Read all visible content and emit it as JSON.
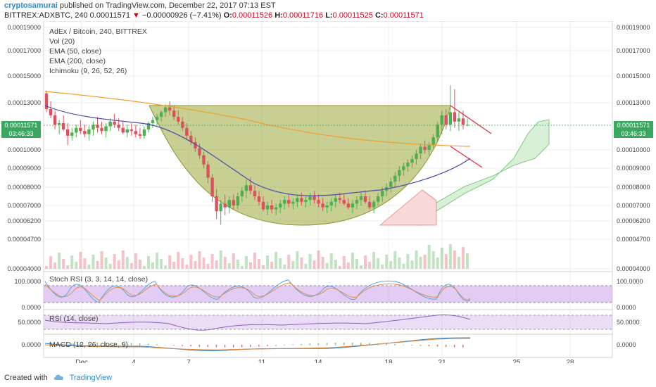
{
  "header": {
    "user": "cryptosamurai",
    "published": "published on TradingView.com, December 22, 2017 07:13 EST",
    "symbol": "BITTREX:ADXBTC, 240",
    "last": "0.00011571",
    "change_arrow": "▼",
    "change": "−0.00000926 (−7.41%)",
    "open_label": "O:",
    "open": "0.00011526",
    "high_label": "H:",
    "high": "0.00011716",
    "low_label": "L:",
    "low": "0.00011525",
    "close_label": "C:",
    "close": "0.00011571"
  },
  "legend": {
    "title": "AdEx / Bitcoin, 240, BITTREX",
    "vol": "Vol (20)",
    "ema50": "EMA (50, close)",
    "ema200": "EMA (200, close)",
    "ichimoku": "Ichimoku (9, 26, 52, 26)"
  },
  "price_badge": {
    "price": "0.00011571",
    "countdown": "03:46:33"
  },
  "footer": {
    "created": "Created with",
    "brand": "TradingView"
  },
  "colors": {
    "up": "#4caf50",
    "down": "#e04f5f",
    "cup": "#9aa83a",
    "ema50": "#5a5aa8",
    "ema200": "#f0a030",
    "rsi_band": "#c18ee6"
  },
  "chart_data": {
    "type": "candlestick",
    "price_axis": {
      "ticks": [
        0.00019,
        0.00017,
        0.00015,
        0.00013,
        0.0001,
        9e-05,
        8e-05,
        7e-05,
        6.2e-05,
        4.7e-05,
        4e-05
      ],
      "labels": [
        "0.00019000",
        "0.00017000",
        "0.00015000",
        "0.00013000",
        "0.00010000",
        "0.00009000",
        "0.00008000",
        "0.00007000",
        "0.00006200",
        "0.00004700",
        "0.00004000"
      ]
    },
    "x_ticks": [
      "Dec",
      "4",
      "7",
      "11",
      "14",
      "18",
      "21",
      "25",
      "28"
    ],
    "candles": [
      [
        0.000137,
        0.000139,
        0.000124,
        0.000126
      ],
      [
        0.000126,
        0.000131,
        0.00012,
        0.000122
      ],
      [
        0.000122,
        0.000125,
        0.000113,
        0.000116
      ],
      [
        0.000116,
        0.000119,
        0.00011,
        0.000117
      ],
      [
        0.000117,
        0.000122,
        0.000112,
        0.000113
      ],
      [
        0.000113,
        0.000117,
        0.000103,
        0.000109
      ],
      [
        0.000109,
        0.000114,
        0.000106,
        0.000111
      ],
      [
        0.000111,
        0.000116,
        0.000108,
        0.000114
      ],
      [
        0.000114,
        0.000119,
        0.00011,
        0.000112
      ],
      [
        0.000112,
        0.000116,
        0.000108,
        0.00011
      ],
      [
        0.00011,
        0.000115,
        0.000106,
        0.000113
      ],
      [
        0.000113,
        0.000118,
        0.000109,
        0.000116
      ],
      [
        0.000116,
        0.000121,
        0.000111,
        0.000114
      ],
      [
        0.000114,
        0.000118,
        0.00011,
        0.000112
      ],
      [
        0.000112,
        0.000117,
        0.000108,
        0.000115
      ],
      [
        0.000115,
        0.00012,
        0.000112,
        0.000118
      ],
      [
        0.000118,
        0.000123,
        0.000114,
        0.000116
      ],
      [
        0.000116,
        0.00012,
        0.000112,
        0.000114
      ],
      [
        0.000114,
        0.000118,
        0.00011,
        0.000111
      ],
      [
        0.000111,
        0.000116,
        0.000108,
        0.000113
      ],
      [
        0.000113,
        0.000117,
        0.000109,
        0.000112
      ],
      [
        0.000112,
        0.000116,
        0.000108,
        0.00011
      ],
      [
        0.00011,
        0.000114,
        0.000107,
        0.000109
      ],
      [
        0.000109,
        0.000115,
        0.000107,
        0.000113
      ],
      [
        0.000113,
        0.000118,
        0.000111,
        0.000117
      ],
      [
        0.000117,
        0.000121,
        0.000114,
        0.000119
      ],
      [
        0.000119,
        0.000123,
        0.000116,
        0.000121
      ],
      [
        0.000121,
        0.000125,
        0.000118,
        0.000124
      ],
      [
        0.000124,
        0.000129,
        0.000121,
        0.000127
      ],
      [
        0.000127,
        0.000131,
        0.000122,
        0.000125
      ],
      [
        0.000125,
        0.000128,
        0.000119,
        0.000121
      ],
      [
        0.000121,
        0.000125,
        0.000116,
        0.000118
      ],
      [
        0.000118,
        0.000121,
        0.000112,
        0.000114
      ],
      [
        0.000114,
        0.000117,
        0.000107,
        0.000109
      ],
      [
        0.000109,
        0.000112,
        0.000103,
        0.000105
      ],
      [
        0.000105,
        0.000108,
        9.9e-05,
        0.000101
      ],
      [
        0.000101,
        0.000104,
        9.5e-05,
        9.7e-05
      ],
      [
        9.7e-05,
        9.9e-05,
        9e-05,
        9.2e-05
      ],
      [
        9.2e-05,
        9.4e-05,
        8.2e-05,
        8.5e-05
      ],
      [
        8.5e-05,
        8.7e-05,
        7.2e-05,
        7.5e-05
      ],
      [
        7.5e-05,
        7.9e-05,
        6.3e-05,
        6.7e-05
      ],
      [
        6.7e-05,
        7.3e-05,
        5.9e-05,
        7.1e-05
      ],
      [
        7.1e-05,
        7.6e-05,
        6.5e-05,
        6.9e-05
      ],
      [
        6.9e-05,
        7.5e-05,
        6.6e-05,
        7.3e-05
      ],
      [
        7.3e-05,
        7.6e-05,
        6.8e-05,
        7e-05
      ],
      [
        7e-05,
        7.7e-05,
        6.8e-05,
        7.5e-05
      ],
      [
        7.5e-05,
        8e-05,
        7.2e-05,
        7.8e-05
      ],
      [
        7.8e-05,
        8.4e-05,
        7.4e-05,
        8.1e-05
      ],
      [
        8.1e-05,
        8.5e-05,
        7.6e-05,
        7.8e-05
      ],
      [
        7.8e-05,
        8.1e-05,
        7.3e-05,
        7.5e-05
      ],
      [
        7.5e-05,
        7.8e-05,
        7e-05,
        7.2e-05
      ],
      [
        7.2e-05,
        7.5e-05,
        6.7e-05,
        6.8e-05
      ],
      [
        6.8e-05,
        7.2e-05,
        6.5e-05,
        7e-05
      ],
      [
        7e-05,
        7.3e-05,
        6.6e-05,
        6.8e-05
      ],
      [
        6.8e-05,
        7.1e-05,
        6.5e-05,
        6.9e-05
      ],
      [
        6.9e-05,
        7.3e-05,
        6.6e-05,
        7.1e-05
      ],
      [
        7.1e-05,
        7.5e-05,
        6.8e-05,
        7.3e-05
      ],
      [
        7.3e-05,
        7.6e-05,
        6.9e-05,
        7.1e-05
      ],
      [
        7.1e-05,
        7.4e-05,
        6.8e-05,
        7.2e-05
      ],
      [
        7.2e-05,
        7.6e-05,
        6.9e-05,
        7.4e-05
      ],
      [
        7.4e-05,
        7.7e-05,
        7e-05,
        7.2e-05
      ],
      [
        7.2e-05,
        7.5e-05,
        6.9e-05,
        7.3e-05
      ],
      [
        7.3e-05,
        7.7e-05,
        7e-05,
        7.5e-05
      ],
      [
        7.5e-05,
        7.8e-05,
        7.1e-05,
        7.3e-05
      ],
      [
        7.3e-05,
        7.6e-05,
        6.9e-05,
        7.1e-05
      ],
      [
        7.1e-05,
        7.4e-05,
        6.7e-05,
        6.9e-05
      ],
      [
        6.9e-05,
        7.2e-05,
        6.6e-05,
        7e-05
      ],
      [
        7e-05,
        7.4e-05,
        6.7e-05,
        7.2e-05
      ],
      [
        7.2e-05,
        7.6e-05,
        6.9e-05,
        7.4e-05
      ],
      [
        7.4e-05,
        7.7e-05,
        7.1e-05,
        7.3e-05
      ],
      [
        7.3e-05,
        7.6e-05,
        7e-05,
        7.1e-05
      ],
      [
        7.1e-05,
        7.4e-05,
        6.8e-05,
        6.9e-05
      ],
      [
        6.9e-05,
        7.3e-05,
        6.6e-05,
        7.1e-05
      ],
      [
        7.1e-05,
        7.5e-05,
        6.8e-05,
        7.3e-05
      ],
      [
        7.3e-05,
        7.7e-05,
        7e-05,
        7.5e-05
      ],
      [
        7.5e-05,
        7.8e-05,
        7.1e-05,
        7.2e-05
      ],
      [
        7.2e-05,
        7.5e-05,
        6.8e-05,
        6.9e-05
      ],
      [
        6.9e-05,
        7.3e-05,
        6.6e-05,
        7.2e-05
      ],
      [
        7.2e-05,
        7.7e-05,
        7e-05,
        7.5e-05
      ],
      [
        7.5e-05,
        8e-05,
        7.2e-05,
        7.8e-05
      ],
      [
        7.8e-05,
        8.2e-05,
        7.5e-05,
        8e-05
      ],
      [
        8e-05,
        8.5e-05,
        7.7e-05,
        8.3e-05
      ],
      [
        8.3e-05,
        8.8e-05,
        8e-05,
        8.6e-05
      ],
      [
        8.6e-05,
        9.1e-05,
        8.3e-05,
        8.9e-05
      ],
      [
        8.9e-05,
        9.3e-05,
        8.6e-05,
        9.1e-05
      ],
      [
        9.1e-05,
        9.5e-05,
        8.8e-05,
        9.3e-05
      ],
      [
        9.3e-05,
        9.7e-05,
        9e-05,
        9.5e-05
      ],
      [
        9.5e-05,
        0.0001,
        9.2e-05,
        9.8e-05
      ],
      [
        9.8e-05,
        0.000104,
        9.5e-05,
        0.000102
      ],
      [
        0.000102,
        0.000106,
        9.8e-05,
        0.0001
      ],
      [
        0.0001,
        0.000105,
        9.7e-05,
        0.000103
      ],
      [
        0.000103,
        0.00011,
        0.000101,
        0.000108
      ],
      [
        0.000108,
        0.000118,
        0.000105,
        0.000116
      ],
      [
        0.000116,
        0.000125,
        0.00011,
        0.000122
      ],
      [
        0.000122,
        0.000126,
        0.000113,
        0.000116
      ],
      [
        0.000116,
        0.000143,
        0.000112,
        0.000124
      ],
      [
        0.000124,
        0.00014,
        0.000114,
        0.000118
      ],
      [
        0.000118,
        0.000124,
        0.000112,
        0.00012
      ],
      [
        0.00012,
        0.000125,
        0.000113,
        0.000116
      ],
      [
        0.000116,
        0.00012,
        0.000115,
        0.000116
      ]
    ],
    "indicators": {
      "stoch_rsi": {
        "label": "Stoch RSI (3, 3, 14, 14, close)",
        "axis_labels": [
          "100.0000",
          "0.0000"
        ]
      },
      "rsi": {
        "label": "RSI (14, close)",
        "axis_label": "50.0000"
      },
      "macd": {
        "label": "MACD (12, 26, close, 9)",
        "axis_label": "0.0000"
      }
    }
  }
}
